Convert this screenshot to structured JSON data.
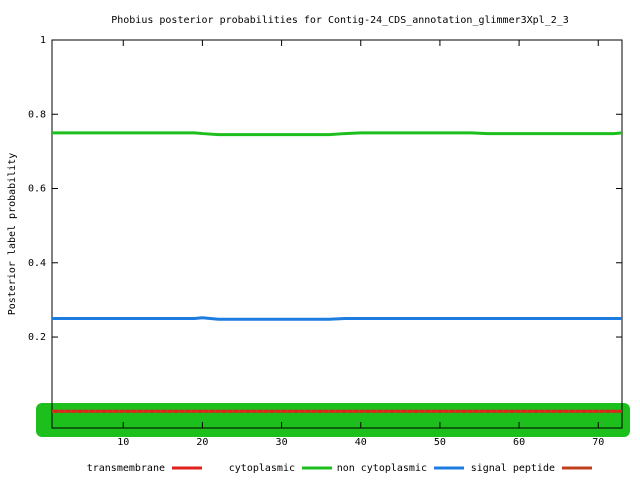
{
  "chart_data": {
    "type": "line",
    "title": "Phobius posterior probabilities for Contig-24_CDS_annotation_glimmer3Xpl_2_3",
    "y_label": "Posterior label probability",
    "x": [
      1,
      19,
      20,
      22,
      36,
      38,
      40,
      54,
      56,
      72,
      73
    ],
    "xlim": [
      1,
      73
    ],
    "xticks": [
      10,
      20,
      30,
      40,
      50,
      60,
      70
    ],
    "ylim": [
      -0.045,
      1
    ],
    "yticks": [
      0.2,
      0.4,
      0.6,
      0.8,
      1
    ],
    "series": [
      {
        "name": "transmembrane",
        "color": "#e0201c",
        "values": [
          0,
          0,
          0,
          0,
          0,
          0,
          0,
          0,
          0,
          0,
          0
        ]
      },
      {
        "name": "cytoplasmic",
        "color": "#1cbf1c",
        "values": [
          0.75,
          0.75,
          0.748,
          0.745,
          0.745,
          0.748,
          0.75,
          0.75,
          0.748,
          0.748,
          0.75
        ]
      },
      {
        "name": "non cytoplasmic",
        "color": "#1c7ce0",
        "values": [
          0.25,
          0.25,
          0.252,
          0.248,
          0.248,
          0.25,
          0.25,
          0.25,
          0.25,
          0.25,
          0.25
        ]
      },
      {
        "name": "signal peptide",
        "color": "#c0401c",
        "values": [
          0,
          0,
          0,
          0,
          0,
          0,
          0,
          0,
          0,
          0,
          0
        ]
      }
    ]
  }
}
